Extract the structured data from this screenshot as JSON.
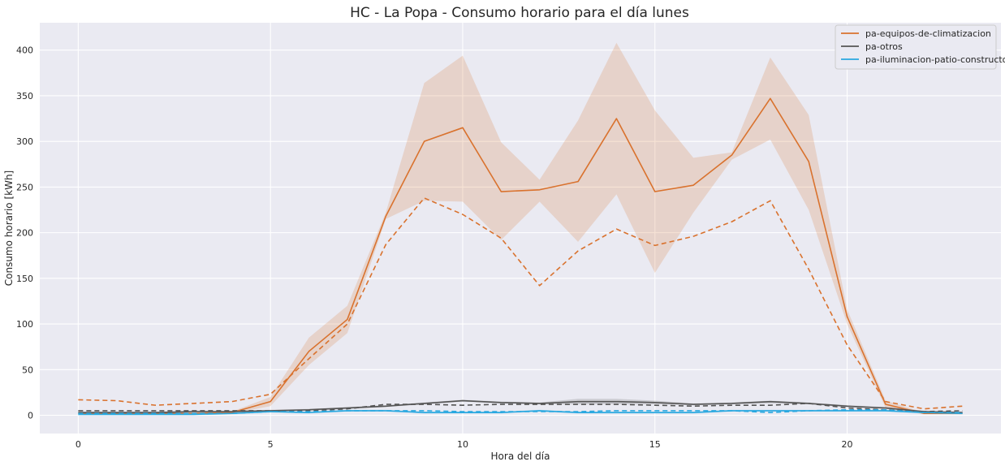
{
  "chart_data": {
    "type": "line",
    "title": "HC - La Popa - Consumo horario para el día lunes",
    "xlabel": "Hora del día",
    "ylabel": "Consumo horario [kWh]",
    "xlim": [
      -1,
      24
    ],
    "ylim": [
      -20,
      430
    ],
    "xticks": [
      0,
      5,
      10,
      15,
      20
    ],
    "yticks": [
      0,
      50,
      100,
      150,
      200,
      250,
      300,
      350,
      400
    ],
    "grid": true,
    "legend_position": "top-right",
    "x": [
      0,
      1,
      2,
      3,
      4,
      5,
      6,
      7,
      8,
      9,
      10,
      11,
      12,
      13,
      14,
      15,
      16,
      17,
      18,
      19,
      20,
      21,
      22,
      23
    ],
    "series": [
      {
        "name": "pa-equipos-de-climatizacion",
        "color": "#d9722e",
        "style": "solid",
        "values": [
          2,
          2,
          2,
          2,
          3,
          15,
          70,
          105,
          218,
          300,
          315,
          245,
          247,
          256,
          325,
          245,
          252,
          285,
          347,
          278,
          108,
          12,
          2,
          2
        ],
        "band_low": [
          1,
          1,
          1,
          1,
          2,
          10,
          55,
          90,
          215,
          235,
          234,
          192,
          234,
          190,
          242,
          156,
          222,
          280,
          302,
          225,
          100,
          8,
          1,
          1
        ],
        "band_high": [
          3,
          3,
          3,
          3,
          4,
          20,
          85,
          120,
          222,
          364,
          394,
          299,
          258,
          323,
          408,
          334,
          282,
          288,
          392,
          329,
          116,
          16,
          3,
          3
        ]
      },
      {
        "name": "",
        "color": "#d9722e",
        "style": "dashed",
        "values": [
          17,
          16,
          11,
          13,
          15,
          23,
          62,
          100,
          187,
          238,
          220,
          194,
          142,
          180,
          204,
          186,
          196,
          212,
          235,
          160,
          77,
          15,
          7,
          10
        ]
      },
      {
        "name": "pa-otros",
        "color": "#555555",
        "style": "solid",
        "values": [
          3,
          3,
          3,
          4,
          4,
          5,
          6,
          8,
          10,
          13,
          16,
          14,
          13,
          15,
          15,
          14,
          12,
          13,
          15,
          13,
          10,
          8,
          4,
          3
        ],
        "band_low": [
          2,
          2,
          2,
          3,
          3,
          4,
          5,
          7,
          9,
          12,
          15,
          13,
          12,
          12,
          12,
          12,
          11,
          12,
          13,
          12,
          9,
          7,
          3,
          2
        ],
        "band_high": [
          4,
          4,
          4,
          5,
          5,
          6,
          7,
          9,
          11,
          14,
          17,
          15,
          14,
          18,
          18,
          16,
          13,
          14,
          16,
          14,
          11,
          9,
          5,
          4
        ]
      },
      {
        "name": "",
        "color": "#555555",
        "style": "dashed",
        "values": [
          5,
          5,
          5,
          5,
          5,
          5,
          5,
          7,
          12,
          12,
          11,
          12,
          12,
          12,
          12,
          11,
          10,
          11,
          11,
          13,
          8,
          6,
          4,
          5
        ]
      },
      {
        "name": "pa-iluminacion-patio-constructor",
        "color": "#29a8e0",
        "style": "solid",
        "values": [
          1,
          1,
          1,
          1,
          2,
          4,
          3,
          5,
          5,
          3,
          3,
          3,
          5,
          3,
          3,
          3,
          3,
          5,
          5,
          5,
          5,
          5,
          3,
          2
        ],
        "band_low": [
          0,
          0,
          0,
          0,
          1,
          3,
          2,
          4,
          4,
          2,
          2,
          2,
          4,
          2,
          2,
          2,
          2,
          4,
          4,
          4,
          4,
          4,
          2,
          1
        ],
        "band_high": [
          2,
          2,
          2,
          2,
          3,
          5,
          4,
          6,
          6,
          4,
          4,
          4,
          6,
          4,
          4,
          4,
          4,
          6,
          6,
          6,
          6,
          6,
          4,
          3
        ]
      },
      {
        "name": "",
        "color": "#29a8e0",
        "style": "dashed",
        "values": [
          2,
          2,
          2,
          2,
          2,
          4,
          4,
          5,
          5,
          5,
          4,
          4,
          4,
          4,
          5,
          5,
          5,
          5,
          3,
          5,
          6,
          6,
          3,
          3
        ]
      }
    ]
  },
  "colors": {
    "plot_background": "#eaeaf2",
    "grid": "#ffffff",
    "text": "#262626"
  }
}
